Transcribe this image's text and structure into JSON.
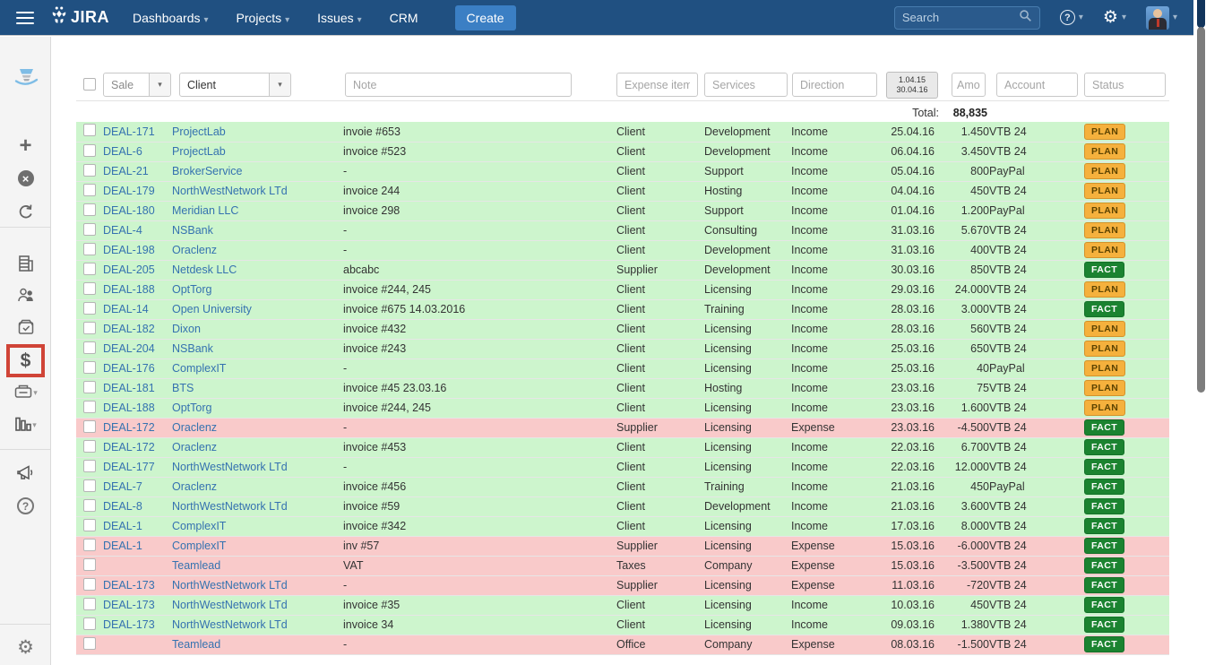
{
  "topnav": {
    "brand": "JIRA",
    "menu_items": [
      {
        "label": "Dashboards",
        "caret": "▾"
      },
      {
        "label": "Projects",
        "caret": "▾"
      },
      {
        "label": "Issues",
        "caret": "▾"
      },
      {
        "label": "CRM",
        "caret": ""
      }
    ],
    "create_button": "Create",
    "search_placeholder": "Search",
    "help_glyph": "?",
    "gear_glyph": "⚙",
    "caret_glyph": "▾"
  },
  "sidebar": {
    "icons": [
      "teamlead-logo",
      "add",
      "close",
      "redo",
      "companies",
      "contacts",
      "products",
      "transactions",
      "documents",
      "reports",
      "announcement",
      "help",
      "settings",
      "expand"
    ],
    "selected_tool": "transactions",
    "dollar_glyph": "$",
    "plus_glyph": "+",
    "close_glyph": "×",
    "help_glyph": "?",
    "gear_glyph": "⚙",
    "expand_glyph": "»",
    "caret_glyph": "▾"
  },
  "filters": {
    "sale_label": "Sale",
    "client_label": "Client",
    "note_placeholder": "Note",
    "expense_items_placeholder": "Expense items",
    "services_placeholder": "Services",
    "direction_placeholder": "Direction",
    "date_from": "1.04.15",
    "date_to": "30.04.16",
    "amount_placeholder": "Amount",
    "account_placeholder": "Account",
    "status_placeholder": "Status",
    "dropdown_glyph": "▾"
  },
  "totals": {
    "label": "Total:",
    "value": "88,835"
  },
  "table": {
    "rows": [
      {
        "key": "DEAL-171",
        "company": "ProjectLab",
        "note": "invoie #653",
        "expense_item": "Client",
        "service": "Development",
        "direction": "Income",
        "date": "25.04.16",
        "amount": "1.450",
        "account": "VTB 24",
        "status": "PLAN",
        "type": "income"
      },
      {
        "key": "DEAL-6",
        "company": "ProjectLab",
        "note": "invoice #523",
        "expense_item": "Client",
        "service": "Development",
        "direction": "Income",
        "date": "06.04.16",
        "amount": "3.450",
        "account": "VTB 24",
        "status": "PLAN",
        "type": "income"
      },
      {
        "key": "DEAL-21",
        "company": "BrokerService",
        "note": "-",
        "expense_item": "Client",
        "service": "Support",
        "direction": "Income",
        "date": "05.04.16",
        "amount": "800",
        "account": "PayPal",
        "status": "PLAN",
        "type": "income"
      },
      {
        "key": "DEAL-179",
        "company": "NorthWestNetwork LTd",
        "note": "invoice 244",
        "expense_item": "Client",
        "service": "Hosting",
        "direction": "Income",
        "date": "04.04.16",
        "amount": "450",
        "account": "VTB 24",
        "status": "PLAN",
        "type": "income"
      },
      {
        "key": "DEAL-180",
        "company": "Meridian LLC",
        "note": "invoice 298",
        "expense_item": "Client",
        "service": "Support",
        "direction": "Income",
        "date": "01.04.16",
        "amount": "1.200",
        "account": "PayPal",
        "status": "PLAN",
        "type": "income"
      },
      {
        "key": "DEAL-4",
        "company": "NSBank",
        "note": "-",
        "expense_item": "Client",
        "service": "Consulting",
        "direction": "Income",
        "date": "31.03.16",
        "amount": "5.670",
        "account": "VTB 24",
        "status": "PLAN",
        "type": "income"
      },
      {
        "key": "DEAL-198",
        "company": "Oraclenz",
        "note": "-",
        "expense_item": "Client",
        "service": "Development",
        "direction": "Income",
        "date": "31.03.16",
        "amount": "400",
        "account": "VTB 24",
        "status": "PLAN",
        "type": "income"
      },
      {
        "key": "DEAL-205",
        "company": "Netdesk LLC",
        "note": "abcabc",
        "expense_item": "Supplier",
        "service": "Development",
        "direction": "Income",
        "date": "30.03.16",
        "amount": "850",
        "account": "VTB 24",
        "status": "FACT",
        "type": "income"
      },
      {
        "key": "DEAL-188",
        "company": "OptTorg",
        "note": "invoice #244, 245",
        "expense_item": "Client",
        "service": "Licensing",
        "direction": "Income",
        "date": "29.03.16",
        "amount": "24.000",
        "account": "VTB 24",
        "status": "PLAN",
        "type": "income"
      },
      {
        "key": "DEAL-14",
        "company": "Open University",
        "note": "invoice #675 14.03.2016",
        "expense_item": "Client",
        "service": "Training",
        "direction": "Income",
        "date": "28.03.16",
        "amount": "3.000",
        "account": "VTB 24",
        "status": "FACT",
        "type": "income"
      },
      {
        "key": "DEAL-182",
        "company": "Dixon",
        "note": "invoice #432",
        "expense_item": "Client",
        "service": "Licensing",
        "direction": "Income",
        "date": "28.03.16",
        "amount": "560",
        "account": "VTB 24",
        "status": "PLAN",
        "type": "income"
      },
      {
        "key": "DEAL-204",
        "company": "NSBank",
        "note": "invoice #243",
        "expense_item": "Client",
        "service": "Licensing",
        "direction": "Income",
        "date": "25.03.16",
        "amount": "650",
        "account": "VTB 24",
        "status": "PLAN",
        "type": "income"
      },
      {
        "key": "DEAL-176",
        "company": "ComplexIT",
        "note": "-",
        "expense_item": "Client",
        "service": "Licensing",
        "direction": "Income",
        "date": "25.03.16",
        "amount": "40",
        "account": "PayPal",
        "status": "PLAN",
        "type": "income"
      },
      {
        "key": "DEAL-181",
        "company": "BTS",
        "note": "invoice #45 23.03.16",
        "expense_item": "Client",
        "service": "Hosting",
        "direction": "Income",
        "date": "23.03.16",
        "amount": "75",
        "account": "VTB 24",
        "status": "PLAN",
        "type": "income"
      },
      {
        "key": "DEAL-188",
        "company": "OptTorg",
        "note": "invoice #244, 245",
        "expense_item": "Client",
        "service": "Licensing",
        "direction": "Income",
        "date": "23.03.16",
        "amount": "1.600",
        "account": "VTB 24",
        "status": "PLAN",
        "type": "income"
      },
      {
        "key": "DEAL-172",
        "company": "Oraclenz",
        "note": "-",
        "expense_item": "Supplier",
        "service": "Licensing",
        "direction": "Expense",
        "date": "23.03.16",
        "amount": "-4.500",
        "account": "VTB 24",
        "status": "FACT",
        "type": "expense"
      },
      {
        "key": "DEAL-172",
        "company": "Oraclenz",
        "note": "invoice #453",
        "expense_item": "Client",
        "service": "Licensing",
        "direction": "Income",
        "date": "22.03.16",
        "amount": "6.700",
        "account": "VTB 24",
        "status": "FACT",
        "type": "income"
      },
      {
        "key": "DEAL-177",
        "company": "NorthWestNetwork LTd",
        "note": "-",
        "expense_item": "Client",
        "service": "Licensing",
        "direction": "Income",
        "date": "22.03.16",
        "amount": "12.000",
        "account": "VTB 24",
        "status": "FACT",
        "type": "income"
      },
      {
        "key": "DEAL-7",
        "company": "Oraclenz",
        "note": "invoice #456",
        "expense_item": "Client",
        "service": "Training",
        "direction": "Income",
        "date": "21.03.16",
        "amount": "450",
        "account": "PayPal",
        "status": "FACT",
        "type": "income"
      },
      {
        "key": "DEAL-8",
        "company": "NorthWestNetwork LTd",
        "note": "invoice #59",
        "expense_item": "Client",
        "service": "Development",
        "direction": "Income",
        "date": "21.03.16",
        "amount": "3.600",
        "account": "VTB 24",
        "status": "FACT",
        "type": "income"
      },
      {
        "key": "DEAL-1",
        "company": "ComplexIT",
        "note": "invoice #342",
        "expense_item": "Client",
        "service": "Licensing",
        "direction": "Income",
        "date": "17.03.16",
        "amount": "8.000",
        "account": "VTB 24",
        "status": "FACT",
        "type": "income"
      },
      {
        "key": "DEAL-1",
        "company": "ComplexIT",
        "note": "inv #57",
        "expense_item": "Supplier",
        "service": "Licensing",
        "direction": "Expense",
        "date": "15.03.16",
        "amount": "-6.000",
        "account": "VTB 24",
        "status": "FACT",
        "type": "expense"
      },
      {
        "key": "",
        "company": "Teamlead",
        "note": "VAT",
        "expense_item": "Taxes",
        "service": "Company",
        "direction": "Expense",
        "date": "15.03.16",
        "amount": "-3.500",
        "account": "VTB 24",
        "status": "FACT",
        "type": "expense"
      },
      {
        "key": "DEAL-173",
        "company": "NorthWestNetwork LTd",
        "note": "-",
        "expense_item": "Supplier",
        "service": "Licensing",
        "direction": "Expense",
        "date": "11.03.16",
        "amount": "-720",
        "account": "VTB 24",
        "status": "FACT",
        "type": "expense"
      },
      {
        "key": "DEAL-173",
        "company": "NorthWestNetwork LTd",
        "note": "invoice #35",
        "expense_item": "Client",
        "service": "Licensing",
        "direction": "Income",
        "date": "10.03.16",
        "amount": "450",
        "account": "VTB 24",
        "status": "FACT",
        "type": "income"
      },
      {
        "key": "DEAL-173",
        "company": "NorthWestNetwork LTd",
        "note": "invoice 34",
        "expense_item": "Client",
        "service": "Licensing",
        "direction": "Income",
        "date": "09.03.16",
        "amount": "1.380",
        "account": "VTB 24",
        "status": "FACT",
        "type": "income"
      },
      {
        "key": "",
        "company": "Teamlead",
        "note": "-",
        "expense_item": "Office",
        "service": "Company",
        "direction": "Expense",
        "date": "08.03.16",
        "amount": "-1.500",
        "account": "VTB 24",
        "status": "FACT",
        "type": "expense"
      }
    ]
  },
  "colors": {
    "header": "#205081",
    "link": "#3572b0",
    "row_income": "#cdf5cd",
    "row_expense": "#f9caca",
    "plan_bg": "#f5b13d",
    "fact_bg": "#1b8330",
    "selected_outline": "#d04437"
  }
}
